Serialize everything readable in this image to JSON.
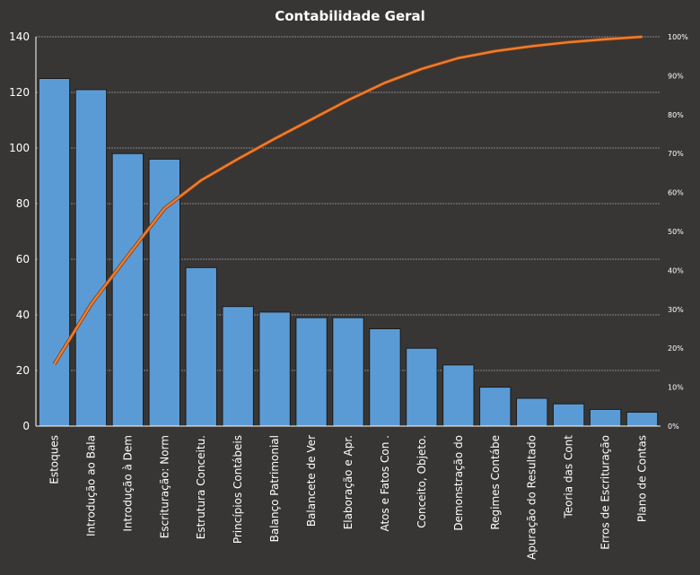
{
  "chart_data": {
    "type": "bar",
    "subtype": "pareto",
    "title": "Contabilidade  Geral",
    "categories": [
      "Estoques",
      "Introdução  ao Bala",
      "Introdução  à Dem",
      "Escrituração: Norm",
      "Estrutura  Conceitu.",
      "Princípios Contábeis",
      "Balanço Patrimonial",
      "Balancete de Ver",
      "Elaboração e Apr.",
      "Atos e Fatos Con .",
      "Conceito, Objeto.",
      "Demonstração do",
      "Regimes Contábe",
      "Apuração do Resultado",
      "Teoria das Cont",
      "Erros de Escrituração",
      "Plano de Contas"
    ],
    "values": [
      125,
      121,
      98,
      96,
      57,
      43,
      41,
      39,
      39,
      35,
      28,
      22,
      14,
      10,
      8,
      6,
      5
    ],
    "cumulative_percent_series": "computed from values",
    "ylim": [
      0,
      140
    ],
    "yticks": [
      "0",
      "20",
      "40",
      "60",
      "80",
      "100",
      "120",
      "140"
    ],
    "y2lim": [
      0,
      100
    ],
    "y2ticks": [
      "0%",
      "10%",
      "20%",
      "30%",
      "40%",
      "50%",
      "60%",
      "70%",
      "80%",
      "90%",
      "100%"
    ],
    "grid": true,
    "colors": {
      "bar": "#5b9bd5",
      "line": "#ed7d31",
      "background": "#383634",
      "grid": "#d9d9d9"
    }
  }
}
